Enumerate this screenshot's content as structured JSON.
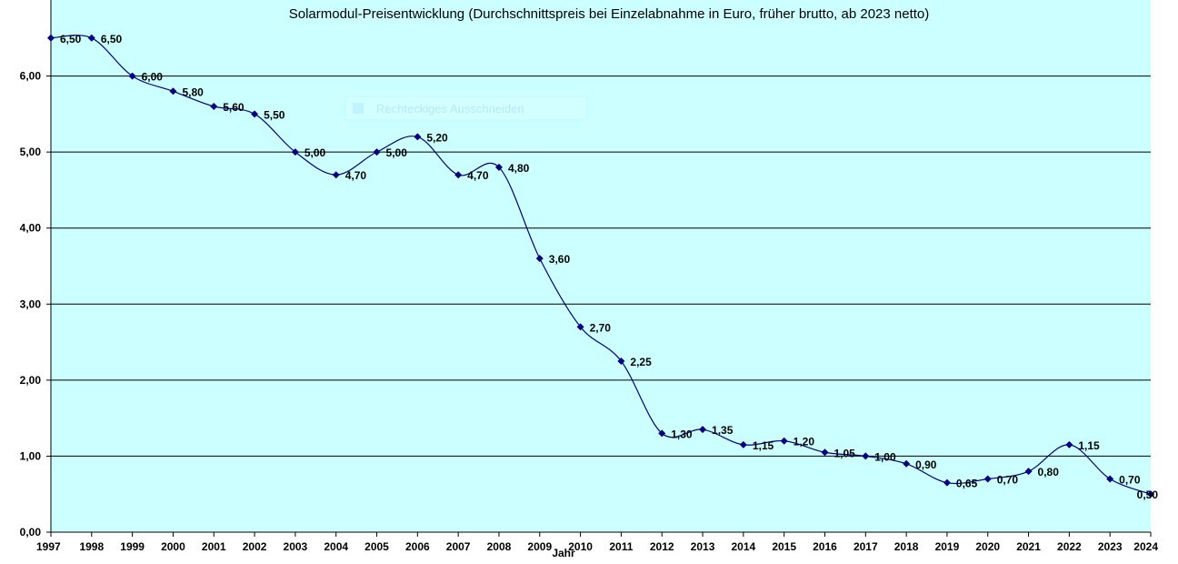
{
  "chart_data": {
    "type": "line",
    "title": "Solarmodul-Preisentwicklung (Durchschnittspreis bei Einzelabnahme in Euro, früher brutto, ab 2023 netto)",
    "xlabel": "Jahr",
    "ylabel": "",
    "categories": [
      "1997",
      "1998",
      "1999",
      "2000",
      "2001",
      "2002",
      "2003",
      "2004",
      "2005",
      "2006",
      "2007",
      "2008",
      "2009",
      "2010",
      "2011",
      "2012",
      "2013",
      "2014",
      "2015",
      "2016",
      "2017",
      "2018",
      "2019",
      "2020",
      "2021",
      "2022",
      "2023",
      "2024"
    ],
    "values": [
      6.5,
      6.5,
      6.0,
      5.8,
      5.6,
      5.5,
      5.0,
      4.7,
      5.0,
      5.2,
      4.7,
      4.8,
      3.6,
      2.7,
      2.25,
      1.3,
      1.35,
      1.15,
      1.2,
      1.05,
      1.0,
      0.9,
      0.65,
      0.7,
      0.8,
      1.15,
      0.7,
      0.5
    ],
    "data_labels": [
      "6,50",
      "6,50",
      "6,00",
      "5,80",
      "5,60",
      "5,50",
      "5,00",
      "4,70",
      "5,00",
      "5,20",
      "4,70",
      "4,80",
      "3,60",
      "2,70",
      "2,25",
      "1,30",
      "1,35",
      "1,15",
      "1,20",
      "1,05",
      "1,00",
      "0,90",
      "0,65",
      "0,70",
      "0,80",
      "1,15",
      "0,70",
      "0,50"
    ],
    "y_ticks": [
      0,
      1,
      2,
      3,
      4,
      5,
      6
    ],
    "y_tick_labels": [
      "0,00",
      "1,00",
      "2,00",
      "3,00",
      "4,00",
      "5,00",
      "6,00"
    ],
    "ylim": [
      0,
      7
    ],
    "grid": true,
    "smooth": true,
    "legend": "none"
  },
  "colors": {
    "plot_background": "#ccffff",
    "gridline": "#000000",
    "series_line": "#000080",
    "marker": "#000080"
  },
  "overlay": {
    "ghost_button_label": "Rechteckiges Ausschneiden"
  }
}
